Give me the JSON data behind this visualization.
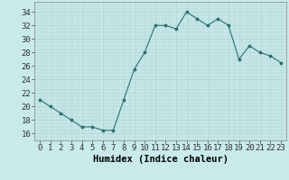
{
  "x": [
    0,
    1,
    2,
    3,
    4,
    5,
    6,
    7,
    8,
    9,
    10,
    11,
    12,
    13,
    14,
    15,
    16,
    17,
    18,
    19,
    20,
    21,
    22,
    23
  ],
  "y": [
    21,
    20,
    19,
    18,
    17,
    17,
    16.5,
    16.5,
    21,
    25.5,
    28,
    32,
    32,
    31.5,
    34,
    33,
    32,
    33,
    32,
    27,
    29,
    28,
    27.5,
    26.5
  ],
  "xlabel": "Humidex (Indice chaleur)",
  "ylim": [
    15,
    35.5
  ],
  "xlim": [
    -0.5,
    23.5
  ],
  "yticks": [
    16,
    18,
    20,
    22,
    24,
    26,
    28,
    30,
    32,
    34
  ],
  "xticks": [
    0,
    1,
    2,
    3,
    4,
    5,
    6,
    7,
    8,
    9,
    10,
    11,
    12,
    13,
    14,
    15,
    16,
    17,
    18,
    19,
    20,
    21,
    22,
    23
  ],
  "xtick_labels": [
    "0",
    "1",
    "2",
    "3",
    "4",
    "5",
    "6",
    "7",
    "8",
    "9",
    "10",
    "11",
    "12",
    "13",
    "14",
    "15",
    "16",
    "17",
    "18",
    "19",
    "20",
    "21",
    "22",
    "23"
  ],
  "line_color": "#2d7070",
  "marker_color": "#2d7070",
  "bg_color": "#c8eaea",
  "grid_color": "#b0d4d4",
  "tick_fontsize": 6.5,
  "label_fontsize": 7.5
}
